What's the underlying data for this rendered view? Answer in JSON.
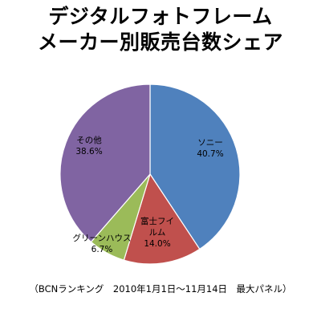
{
  "chart_data": {
    "type": "pie",
    "title": [
      "デジタルフォトフレーム",
      "メーカー別販売台数シェア"
    ],
    "slices": [
      {
        "label": "ソニー",
        "value": 40.7,
        "value_label": "40.7%",
        "color": "#4f81bd"
      },
      {
        "label": "富士フイルム",
        "value": 14.0,
        "value_label": "14.0%",
        "color": "#c0504d"
      },
      {
        "label": "グリーンハウス",
        "value": 6.7,
        "value_label": "6.7%",
        "color": "#9bbb59"
      },
      {
        "label": "その他",
        "value": 38.6,
        "value_label": "38.6%",
        "color": "#8064a2"
      }
    ],
    "start": "12 o'clock",
    "direction": "clockwise"
  },
  "footnote": "（BCNランキング　2010年1月1日～11月14日　最大パネル）"
}
